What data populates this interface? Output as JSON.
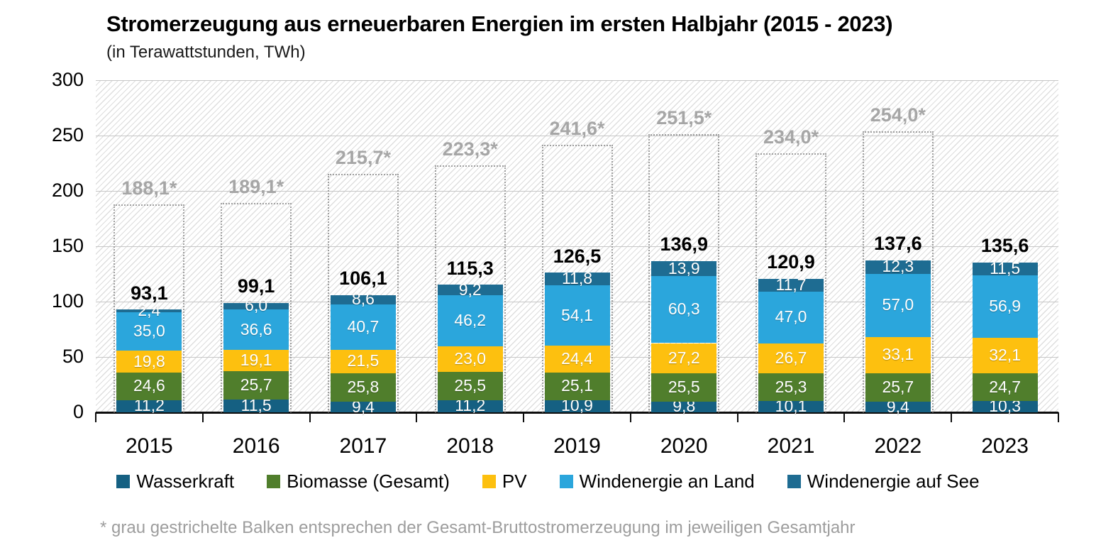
{
  "chart_data": {
    "type": "bar",
    "stacked": true,
    "title": "Stromerzeugung aus erneuerbaren Energien im ersten Halbjahr (2015 - 2023)",
    "subtitle": "(in Terawattstunden, TWh)",
    "categories": [
      "2015",
      "2016",
      "2017",
      "2018",
      "2019",
      "2020",
      "2021",
      "2022",
      "2023"
    ],
    "ylim": [
      0,
      300
    ],
    "yticks": [
      0,
      50,
      100,
      150,
      200,
      250,
      300
    ],
    "grid": "horizontal",
    "legend_position": "bottom",
    "series": [
      {
        "name": "Wasserkraft",
        "color": "#156082",
        "values": [
          11.2,
          11.5,
          9.4,
          11.2,
          10.9,
          9.8,
          10.1,
          9.4,
          10.3
        ],
        "labels": [
          "11,2",
          "11,5",
          "9,4",
          "11,2",
          "10,9",
          "9,8",
          "10,1",
          "9,4",
          "10,3"
        ]
      },
      {
        "name": "Biomasse (Gesamt)",
        "color": "#507e2c",
        "values": [
          24.6,
          25.7,
          25.8,
          25.5,
          25.1,
          25.5,
          25.3,
          25.7,
          24.7
        ],
        "labels": [
          "24,6",
          "25,7",
          "25,8",
          "25,5",
          "25,1",
          "25,5",
          "25,3",
          "25,7",
          "24,7"
        ]
      },
      {
        "name": "PV",
        "color": "#fdc00f",
        "values": [
          19.8,
          19.1,
          21.5,
          23.0,
          24.4,
          27.2,
          26.7,
          33.1,
          32.1
        ],
        "labels": [
          "19,8",
          "19,1",
          "21,5",
          "23,0",
          "24,4",
          "27,2",
          "26,7",
          "33,1",
          "32,1"
        ]
      },
      {
        "name": "Windenergie an Land",
        "color": "#2ba6dc",
        "values": [
          35.0,
          36.6,
          40.7,
          46.2,
          54.1,
          60.3,
          47.0,
          57.0,
          56.9
        ],
        "labels": [
          "35,0",
          "36,6",
          "40,7",
          "46,2",
          "54,1",
          "60,3",
          "47,0",
          "57,0",
          "56,9"
        ]
      },
      {
        "name": "Windenergie auf See",
        "color": "#1e6c92",
        "values": [
          2.4,
          6.0,
          8.6,
          9.2,
          11.8,
          13.9,
          11.7,
          12.3,
          11.5
        ],
        "labels": [
          "2,4",
          "6,0",
          "8,6",
          "9,2",
          "11,8",
          "13,9",
          "11,7",
          "12,3",
          "11,5"
        ]
      }
    ],
    "totals": [
      93.1,
      99.1,
      106.1,
      115.3,
      126.5,
      136.9,
      120.9,
      137.6,
      135.6
    ],
    "total_labels": [
      "93,1",
      "99,1",
      "106,1",
      "115,3",
      "126,5",
      "136,9",
      "120,9",
      "137,6",
      "135,6"
    ],
    "annual_gross": [
      188.1,
      189.1,
      215.7,
      223.3,
      241.6,
      251.5,
      234.0,
      254.0,
      null
    ],
    "annual_gross_labels": [
      "188,1*",
      "189,1*",
      "215,7*",
      "223,3*",
      "241,6*",
      "251,5*",
      "234,0*",
      "254,0*",
      null
    ],
    "footnote": "* grau gestrichelte Balken entsprechen der Gesamt-Bruttostromerzeugung im jeweiligen Gesamtjahr"
  }
}
